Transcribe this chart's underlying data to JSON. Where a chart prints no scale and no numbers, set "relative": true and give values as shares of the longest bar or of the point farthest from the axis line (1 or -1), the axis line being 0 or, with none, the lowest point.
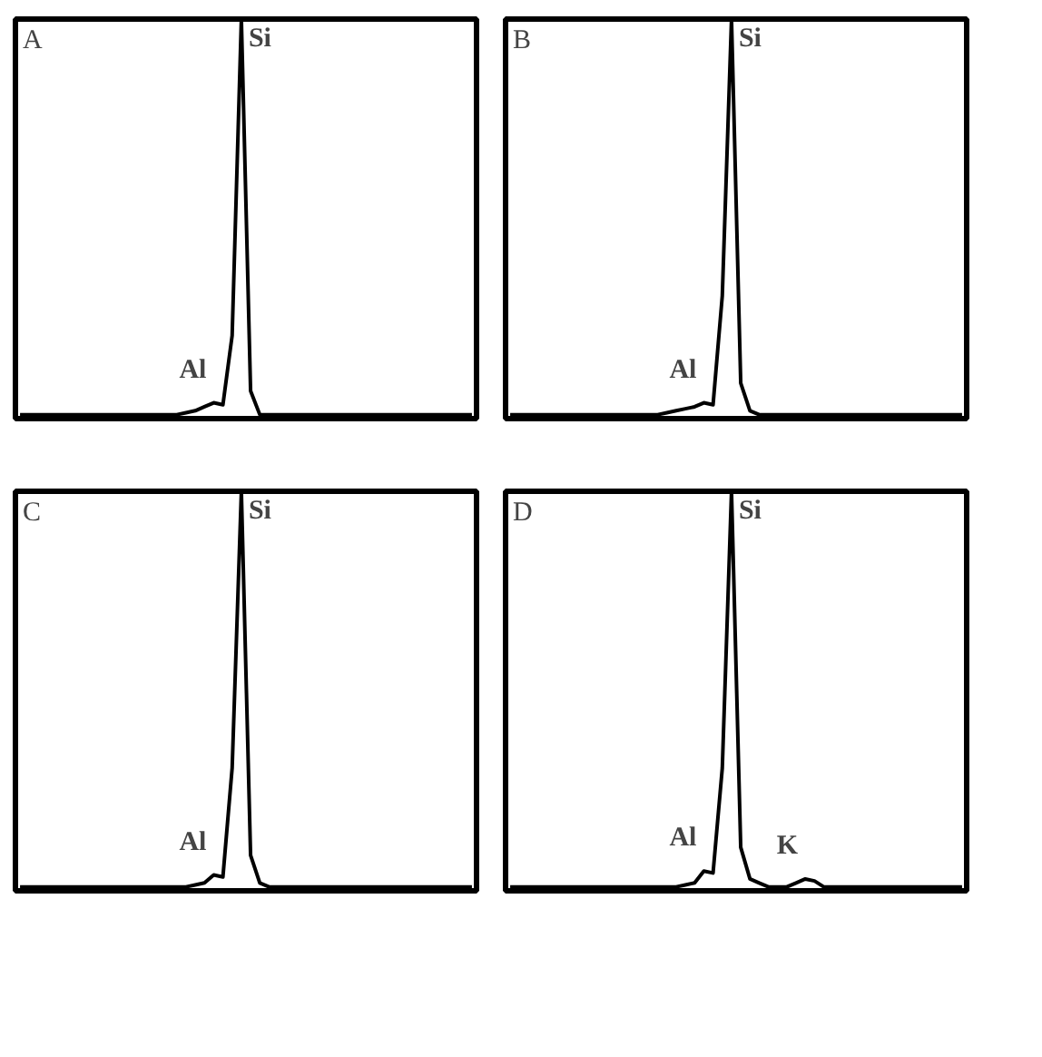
{
  "chart_data": [
    {
      "type": "line",
      "title": "A",
      "relative": true,
      "categories": [
        null,
        null,
        null,
        null,
        null,
        null,
        null,
        null,
        null,
        null,
        null,
        null,
        null,
        null,
        null,
        null,
        null,
        null,
        null,
        null,
        null,
        null,
        null,
        null,
        null,
        null,
        null,
        null,
        null,
        null,
        null,
        null,
        null,
        null,
        null,
        null,
        null,
        null,
        null,
        null,
        null,
        null,
        null,
        null,
        null,
        null,
        null,
        null,
        null,
        null
      ],
      "series": [
        {
          "color": "#000000",
          "values": [
            0,
            0,
            0,
            0,
            0,
            0,
            0,
            0,
            0,
            0,
            0,
            0,
            0,
            0,
            0,
            0,
            0,
            0,
            0.005,
            0.01,
            0.02,
            0.03,
            0.025,
            0.2,
            1,
            0.06,
            0,
            0,
            0,
            0,
            0,
            0,
            0,
            0,
            0,
            0,
            0,
            0,
            0,
            0,
            0,
            0,
            0,
            0,
            0,
            0,
            0,
            0,
            0,
            0
          ]
        }
      ],
      "annotations": [
        "Al",
        "Si"
      ]
    },
    {
      "type": "line",
      "title": "B",
      "relative": true,
      "categories": [
        null,
        null,
        null,
        null,
        null,
        null,
        null,
        null,
        null,
        null,
        null,
        null,
        null,
        null,
        null,
        null,
        null,
        null,
        null,
        null,
        null,
        null,
        null,
        null,
        null,
        null,
        null,
        null,
        null,
        null,
        null,
        null,
        null,
        null,
        null,
        null,
        null,
        null,
        null,
        null,
        null,
        null,
        null,
        null,
        null,
        null,
        null,
        null,
        null,
        null
      ],
      "series": [
        {
          "color": "#000000",
          "values": [
            0,
            0,
            0,
            0,
            0,
            0,
            0,
            0,
            0,
            0,
            0,
            0,
            0,
            0,
            0,
            0,
            0,
            0.005,
            0.01,
            0.015,
            0.02,
            0.03,
            0.025,
            0.3,
            1,
            0.08,
            0.01,
            0,
            0,
            0,
            0,
            0,
            0,
            0,
            0,
            0,
            0,
            0,
            0,
            0,
            0,
            0,
            0,
            0,
            0,
            0,
            0,
            0,
            0,
            0
          ]
        }
      ],
      "annotations": [
        "Al",
        "Si"
      ]
    },
    {
      "type": "line",
      "title": "C",
      "relative": true,
      "categories": [
        null,
        null,
        null,
        null,
        null,
        null,
        null,
        null,
        null,
        null,
        null,
        null,
        null,
        null,
        null,
        null,
        null,
        null,
        null,
        null,
        null,
        null,
        null,
        null,
        null,
        null,
        null,
        null,
        null,
        null,
        null,
        null,
        null,
        null,
        null,
        null,
        null,
        null,
        null,
        null,
        null,
        null,
        null,
        null,
        null,
        null,
        null,
        null,
        null,
        null
      ],
      "series": [
        {
          "color": "#000000",
          "values": [
            0,
            0,
            0,
            0,
            0,
            0,
            0,
            0,
            0,
            0,
            0,
            0,
            0,
            0,
            0,
            0,
            0,
            0,
            0,
            0.005,
            0.01,
            0.03,
            0.025,
            0.3,
            1,
            0.08,
            0.01,
            0,
            0,
            0,
            0,
            0,
            0,
            0,
            0,
            0,
            0,
            0,
            0,
            0,
            0,
            0,
            0,
            0,
            0,
            0,
            0,
            0,
            0,
            0
          ]
        }
      ],
      "annotations": [
        "Al",
        "Si"
      ]
    },
    {
      "type": "line",
      "title": "D",
      "relative": true,
      "categories": [
        null,
        null,
        null,
        null,
        null,
        null,
        null,
        null,
        null,
        null,
        null,
        null,
        null,
        null,
        null,
        null,
        null,
        null,
        null,
        null,
        null,
        null,
        null,
        null,
        null,
        null,
        null,
        null,
        null,
        null,
        null,
        null,
        null,
        null,
        null,
        null,
        null,
        null,
        null,
        null,
        null,
        null,
        null,
        null,
        null,
        null,
        null,
        null,
        null,
        null
      ],
      "series": [
        {
          "color": "#000000",
          "values": [
            0,
            0,
            0,
            0,
            0,
            0,
            0,
            0,
            0,
            0,
            0,
            0,
            0,
            0,
            0,
            0,
            0,
            0,
            0,
            0.005,
            0.01,
            0.04,
            0.035,
            0.3,
            1,
            0.1,
            0.02,
            0.01,
            0,
            0,
            0,
            0.01,
            0.02,
            0.015,
            0,
            0,
            0,
            0,
            0,
            0,
            0,
            0,
            0,
            0,
            0,
            0,
            0,
            0,
            0,
            0
          ]
        }
      ],
      "annotations": [
        "Al",
        "Si",
        "K"
      ]
    }
  ]
}
